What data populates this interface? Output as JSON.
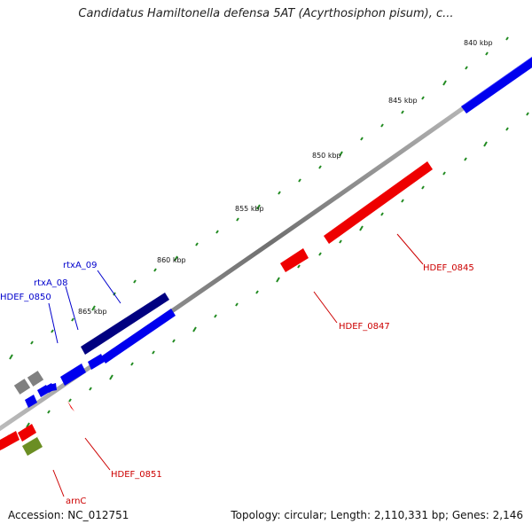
{
  "title": "Candidatus Hamiltonella defensa 5AT (Acyrthosiphon pisum), c...",
  "footer": {
    "accession": "Accession: NC_012751",
    "summary": "Topology: circular; Length: 2,110,331 bp; Genes: 2,146"
  },
  "ticks": [
    "840 kbp",
    "845 kbp",
    "850 kbp",
    "855 kbp",
    "860 kbp",
    "865 kbp"
  ],
  "gene_labels": [
    "rtxA_09",
    "rtxA_08",
    "HDEF_0850",
    "HDEF_0845",
    "HDEF_0847",
    "HDEF_0851",
    "arnC"
  ],
  "colors": {
    "forward_cds": "#0000ee",
    "forward_dark": "#000080",
    "reverse_cds": "#ee0000",
    "rna_gene": "#6b8e23",
    "other": "#808080",
    "backbone": "#808080",
    "tick": "#228b22",
    "label_blue": "#0000cc",
    "label_red": "#cc0000"
  }
}
